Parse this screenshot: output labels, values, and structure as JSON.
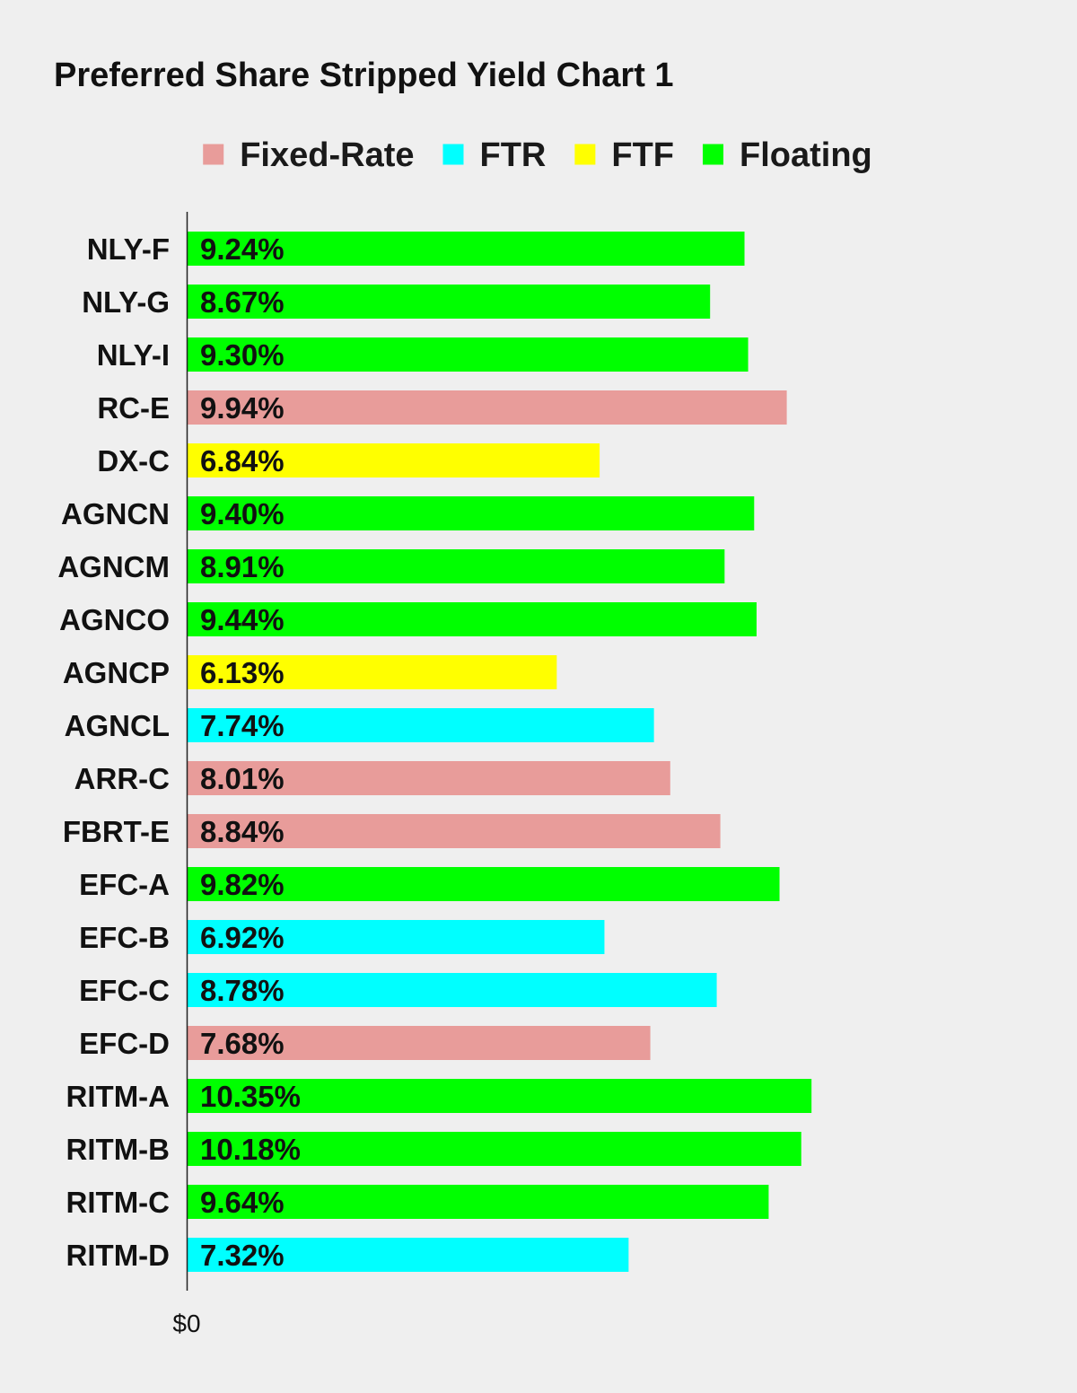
{
  "chart_data": {
    "type": "bar",
    "orientation": "horizontal",
    "title": "Preferred Share Stripped Yield Chart 1",
    "xlabel": "",
    "ylabel": "",
    "x_ticks": [
      "$0"
    ],
    "xlim": [
      0,
      11.15
    ],
    "grid": false,
    "legend_position": "top-center",
    "legend": [
      {
        "name": "Fixed-Rate",
        "color": "#e89c9a"
      },
      {
        "name": "FTR",
        "color": "#00ffff"
      },
      {
        "name": "FTF",
        "color": "#ffff00"
      },
      {
        "name": "Floating",
        "color": "#00ff00"
      }
    ],
    "categories": [
      "NLY-F",
      "NLY-G",
      "NLY-I",
      "RC-E",
      "DX-C",
      "AGNCN",
      "AGNCM",
      "AGNCO",
      "AGNCP",
      "AGNCL",
      "ARR-C",
      "FBRT-E",
      "EFC-A",
      "EFC-B",
      "EFC-C",
      "EFC-D",
      "RITM-A",
      "RITM-B",
      "RITM-C",
      "RITM-D"
    ],
    "values": [
      9.24,
      8.67,
      9.3,
      9.94,
      6.84,
      9.4,
      8.91,
      9.44,
      6.13,
      7.74,
      8.01,
      8.84,
      9.82,
      6.92,
      8.78,
      7.68,
      10.35,
      10.18,
      9.64,
      7.32
    ],
    "value_labels": [
      "9.24%",
      "8.67%",
      "9.30%",
      "9.94%",
      "6.84%",
      "9.40%",
      "8.91%",
      "9.44%",
      "6.13%",
      "7.74%",
      "8.01%",
      "8.84%",
      "9.82%",
      "6.92%",
      "8.78%",
      "7.68%",
      "10.35%",
      "10.18%",
      "9.64%",
      "7.32%"
    ],
    "bar_types": [
      "Floating",
      "Floating",
      "Floating",
      "Fixed-Rate",
      "FTF",
      "Floating",
      "Floating",
      "Floating",
      "FTF",
      "FTR",
      "Fixed-Rate",
      "Fixed-Rate",
      "Floating",
      "FTR",
      "FTR",
      "Fixed-Rate",
      "Floating",
      "Floating",
      "Floating",
      "FTR"
    ]
  }
}
